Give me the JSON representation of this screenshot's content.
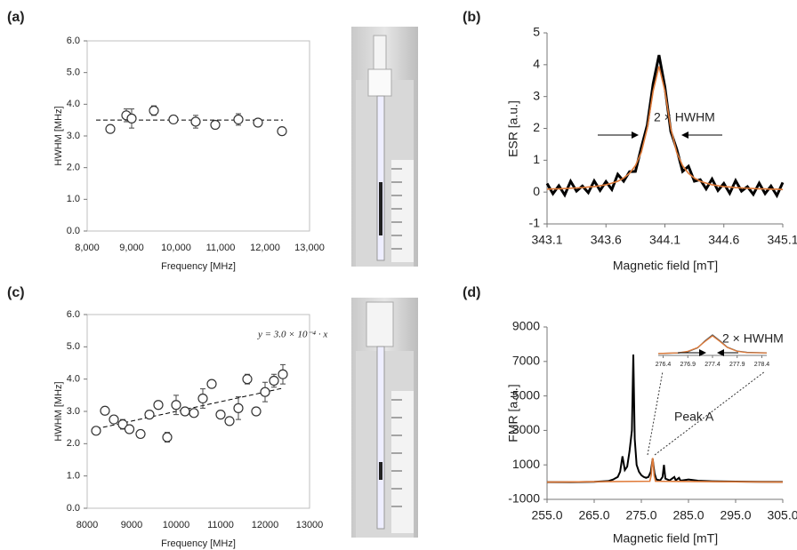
{
  "chart_data": [
    {
      "type": "scatter",
      "panel": "(a)",
      "xlabel": "Frequency [MHz]",
      "ylabel": "HWHM [MHz]",
      "x": [
        8520,
        8880,
        9000,
        9500,
        9940,
        10440,
        10880,
        11400,
        11840,
        12380
      ],
      "y": [
        3.22,
        3.65,
        3.55,
        3.8,
        3.52,
        3.45,
        3.35,
        3.52,
        3.42,
        3.15
      ],
      "errors": [
        0.05,
        0.2,
        0.3,
        0.15,
        0.05,
        0.2,
        0.08,
        0.18,
        0.08,
        0.05
      ],
      "fit": {
        "x": [
          8200,
          12400
        ],
        "y": [
          3.5,
          3.5
        ]
      },
      "xlim": [
        8000,
        13000
      ],
      "ylim": [
        0,
        6
      ],
      "xticks": [
        {
          "value": 8000,
          "label": "8,000"
        },
        {
          "value": 9000,
          "label": "9,000"
        },
        {
          "value": 10000,
          "label": "10,000"
        },
        {
          "value": 11000,
          "label": "11,000"
        },
        {
          "value": 12000,
          "label": "12,000"
        },
        {
          "value": 13000,
          "label": "13,000"
        }
      ],
      "yticks": [
        {
          "value": 0,
          "label": "0.0"
        },
        {
          "value": 1,
          "label": "1.0"
        },
        {
          "value": 2,
          "label": "2.0"
        },
        {
          "value": 3,
          "label": "3.0"
        },
        {
          "value": 4,
          "label": "4.0"
        },
        {
          "value": 5,
          "label": "5.0"
        },
        {
          "value": 6,
          "label": "6.0"
        }
      ]
    },
    {
      "type": "line",
      "panel": "(b)",
      "xlabel": "Magnetic field [mT]",
      "ylabel": "ESR [a.u.]",
      "series": [
        {
          "color": "#000000",
          "x": [
            343.1,
            343.15,
            343.2,
            343.25,
            343.3,
            343.35,
            343.4,
            343.45,
            343.5,
            343.55,
            343.6,
            343.65,
            343.7,
            343.75,
            343.8,
            343.85,
            343.9,
            343.95,
            344.0,
            344.05,
            344.1,
            344.15,
            344.2,
            344.25,
            344.3,
            344.35,
            344.4,
            344.45,
            344.5,
            344.55,
            344.6,
            344.65,
            344.7,
            344.75,
            344.8,
            344.85,
            344.9,
            344.95,
            345.0,
            345.05,
            345.1
          ],
          "values": [
            0.27,
            -0.05,
            0.2,
            -0.09,
            0.34,
            0.03,
            0.19,
            -0.02,
            0.35,
            0.05,
            0.33,
            0.08,
            0.56,
            0.34,
            0.64,
            0.65,
            1.4,
            2.1,
            3.4,
            4.3,
            3.3,
            1.9,
            1.35,
            0.65,
            0.81,
            0.34,
            0.39,
            0.1,
            0.41,
            0.05,
            0.27,
            -0.04,
            0.36,
            0.03,
            0.17,
            -0.07,
            0.28,
            -0.05,
            0.19,
            -0.11,
            0.3
          ]
        },
        {
          "color": "#e07b39",
          "x": [
            343.1,
            343.15,
            343.2,
            343.25,
            343.3,
            343.35,
            343.4,
            343.45,
            343.5,
            343.55,
            343.6,
            343.65,
            343.7,
            343.75,
            343.8,
            343.85,
            343.9,
            343.95,
            344.0,
            344.05,
            344.1,
            344.15,
            344.2,
            344.25,
            344.3,
            344.35,
            344.4,
            344.45,
            344.5,
            344.55,
            344.6,
            344.65,
            344.7,
            344.75,
            344.8,
            344.85,
            344.9,
            344.95,
            345.0,
            345.05,
            345.1
          ],
          "values": [
            0.09,
            0.1,
            0.1,
            0.11,
            0.12,
            0.13,
            0.14,
            0.16,
            0.17,
            0.2,
            0.23,
            0.28,
            0.34,
            0.44,
            0.59,
            0.83,
            1.25,
            2.0,
            3.17,
            3.95,
            3.17,
            2.0,
            1.25,
            0.83,
            0.59,
            0.44,
            0.34,
            0.28,
            0.23,
            0.2,
            0.17,
            0.16,
            0.14,
            0.13,
            0.12,
            0.11,
            0.1,
            0.1,
            0.09,
            0.09,
            0.08
          ]
        }
      ],
      "annotations": [
        "2 × HWHM"
      ],
      "xlim": [
        343.1,
        345.1
      ],
      "ylim": [
        -1,
        5
      ],
      "xticks": [
        343.1,
        343.6,
        344.1,
        344.6,
        345.1
      ],
      "yticks": [
        -1,
        0,
        1,
        2,
        3,
        4,
        5
      ]
    },
    {
      "type": "scatter",
      "panel": "(c)",
      "xlabel": "Frequency [MHz]",
      "ylabel": "HWHM [MHz]",
      "x": [
        8200,
        8400,
        8600,
        8800,
        8950,
        9200,
        9400,
        9600,
        9800,
        10000,
        10200,
        10400,
        10600,
        10800,
        11000,
        11200,
        11400,
        11600,
        11800,
        12000,
        12200,
        12400
      ],
      "y": [
        2.4,
        3.02,
        2.75,
        2.6,
        2.45,
        2.3,
        2.9,
        3.2,
        2.2,
        3.2,
        3.0,
        2.95,
        3.4,
        3.85,
        2.9,
        2.7,
        3.1,
        4.0,
        3.0,
        3.6,
        3.95,
        4.15
      ],
      "errors": [
        0.05,
        0.08,
        0.1,
        0.15,
        0.1,
        0.1,
        0.05,
        0.08,
        0.15,
        0.3,
        0.08,
        0.05,
        0.3,
        0.08,
        0.1,
        0.1,
        0.35,
        0.15,
        0.08,
        0.3,
        0.2,
        0.3
      ],
      "fit": {
        "x": [
          8200,
          12400
        ],
        "y": [
          2.46,
          3.72
        ]
      },
      "annotations": [
        "y = 3.0 × 10⁻⁴ · x"
      ],
      "xlim": [
        8000,
        13000
      ],
      "ylim": [
        0,
        6
      ],
      "xticks": [
        8000,
        9000,
        10000,
        11000,
        12000,
        13000
      ],
      "yticks": [
        {
          "value": 0,
          "label": "0.0"
        },
        {
          "value": 1,
          "label": "1.0"
        },
        {
          "value": 2,
          "label": "2.0"
        },
        {
          "value": 3,
          "label": "3.0"
        },
        {
          "value": 4,
          "label": "4.0"
        },
        {
          "value": 5,
          "label": "5.0"
        },
        {
          "value": 6,
          "label": "6.0"
        }
      ]
    },
    {
      "type": "line",
      "panel": "(d)",
      "xlabel": "Magnetic field [mT]",
      "ylabel": "FMR [a.u.]",
      "series": [
        {
          "color": "#000000",
          "x": [
            255,
            260,
            265,
            268,
            269,
            270,
            270.5,
            271,
            271.5,
            272,
            272.5,
            273,
            273.3,
            273.6,
            274,
            274.5,
            275,
            275.5,
            276,
            276.5,
            277,
            277.4,
            277.8,
            278.2,
            279,
            279.5,
            279.8,
            280.1,
            281,
            282,
            282.3,
            283,
            283.3,
            285,
            287,
            290,
            295,
            300,
            305
          ],
          "values": [
            0,
            0,
            20,
            60,
            150,
            300,
            600,
            1500,
            700,
            900,
            1800,
            3000,
            7400,
            2500,
            1000,
            600,
            400,
            300,
            250,
            300,
            600,
            1350,
            500,
            150,
            100,
            300,
            1000,
            200,
            100,
            300,
            100,
            250,
            80,
            150,
            80,
            50,
            30,
            20,
            10
          ]
        },
        {
          "color": "#e07b39",
          "x": [
            255,
            276.8,
            277.1,
            277.3,
            277.4,
            277.5,
            277.7,
            278,
            305
          ],
          "values": [
            0,
            50,
            400,
            1200,
            1400,
            1200,
            400,
            50,
            0
          ]
        }
      ],
      "annotations": [
        "Peak A"
      ],
      "inset": {
        "xlim": [
          276.3,
          278.5
        ],
        "xticks": [
          276.4,
          276.9,
          277.4,
          277.9,
          278.4
        ],
        "annotation": "2 × HWHM",
        "series": [
          {
            "color": "#555555",
            "x": [
              276.3,
              276.4,
              276.7,
              276.9,
              277.1,
              277.25,
              277.4,
              277.55,
              277.7,
              277.9,
              278.1,
              278.5
            ],
            "values": [
              0,
              20,
              50,
              150,
              450,
              1000,
              1450,
              1000,
              500,
              200,
              100,
              60
            ]
          },
          {
            "color": "#e07b39",
            "x": [
              276.3,
              276.4,
              276.7,
              276.9,
              277.1,
              277.25,
              277.4,
              277.55,
              277.7,
              277.9,
              278.1,
              278.5
            ],
            "values": [
              10,
              20,
              60,
              180,
              480,
              950,
              1380,
              950,
              480,
              180,
              80,
              50
            ]
          }
        ]
      },
      "xlim": [
        255,
        305
      ],
      "ylim": [
        -1000,
        9000
      ],
      "xticks": [
        {
          "value": 255,
          "label": "255.0"
        },
        {
          "value": 265,
          "label": "265.0"
        },
        {
          "value": 275,
          "label": "275.0"
        },
        {
          "value": 285,
          "label": "285.0"
        },
        {
          "value": 295,
          "label": "295.0"
        },
        {
          "value": 305,
          "label": "305.0"
        }
      ],
      "yticks": [
        -1000,
        1000,
        3000,
        5000,
        7000,
        9000
      ]
    }
  ]
}
